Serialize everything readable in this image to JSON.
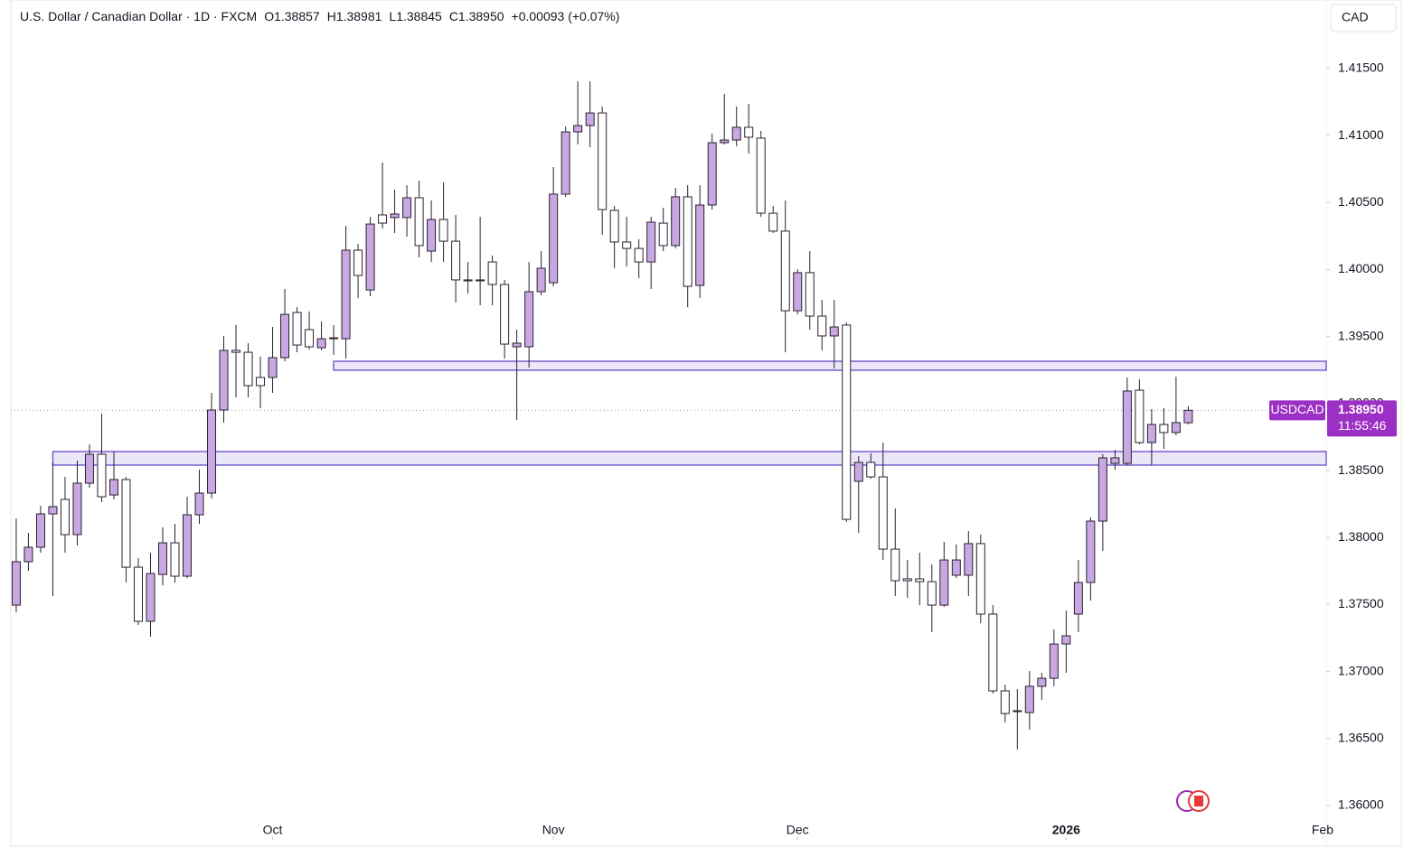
{
  "chart_data": {
    "type": "candlestick",
    "header": {
      "symbol": "U.S. Dollar / Canadian Dollar · 1D · FXCM",
      "ohlc": [
        "O1.38857",
        "H1.38981",
        "L1.38845",
        "C1.38950"
      ],
      "change": "+0.00093 (+0.07%)"
    },
    "currency": "CAD",
    "ticker": "USDCAD",
    "last_price": {
      "value": 1.3895,
      "label": "1.38950"
    },
    "countdown": "11:55:46",
    "up_color": "#c9a7e2",
    "down_color": "#ffffff",
    "border_color": "#2a2230",
    "zone_color": "#7b5fd0",
    "open": [
      1.37496,
      1.3782,
      1.37928,
      1.38177,
      1.38285,
      1.38022,
      1.38406,
      1.38622,
      1.38318,
      1.38433,
      1.37779,
      1.37375,
      1.37725,
      1.37961,
      1.37712,
      1.3817,
      1.38332,
      1.38952,
      1.39397,
      1.39383,
      1.39195,
      1.39195,
      1.39343,
      1.3968,
      1.39552,
      1.39417,
      1.39491,
      1.39484,
      1.40145,
      1.39848,
      1.40408,
      1.40388,
      1.40388,
      1.40536,
      1.40138,
      1.40374,
      1.40212,
      1.39923,
      1.39923,
      1.40057,
      1.39889,
      1.39424,
      1.39424,
      1.39835,
      1.39902,
      1.40563,
      1.41028,
      1.41075,
      1.41169,
      1.40442,
      1.40206,
      1.40158,
      1.40057,
      1.40347,
      1.40179,
      1.40543,
      1.39882,
      1.40482,
      1.40947,
      1.40967,
      1.41062,
      1.40981,
      1.40421,
      1.40287,
      1.39693,
      1.39977,
      1.39653,
      1.39505,
      1.39586,
      1.3842,
      1.38561,
      1.38453,
      1.37914,
      1.37692,
      1.37692,
      1.37671,
      1.37496,
      1.37719,
      1.37719,
      1.37955,
      1.37429,
      1.36856,
      1.36708,
      1.36694,
      1.3689,
      1.3695,
      1.37206,
      1.37429,
      1.37665,
      1.38123,
      1.38554,
      1.38554,
      1.391,
      1.38709,
      1.38844,
      1.38784,
      1.38857
    ],
    "high": [
      1.38143,
      1.38035,
      1.38238,
      1.38561,
      1.38453,
      1.38575,
      1.38696,
      1.38925,
      1.38642,
      1.38453,
      1.37847,
      1.37887,
      1.38076,
      1.38103,
      1.38305,
      1.38507,
      1.3908,
      1.39505,
      1.39586,
      1.39451,
      1.3935,
      1.39572,
      1.39855,
      1.3972,
      1.39687,
      1.39613,
      1.39586,
      1.40327,
      1.40192,
      1.40394,
      1.40799,
      1.40597,
      1.4063,
      1.40664,
      1.40516,
      1.40651,
      1.40408,
      1.40057,
      1.40394,
      1.40105,
      1.39923,
      1.39552,
      1.40057,
      1.40138,
      1.40765,
      1.41068,
      1.41405,
      1.41405,
      1.41217,
      1.40475,
      1.40394,
      1.40226,
      1.40394,
      1.40462,
      1.4061,
      1.4063,
      1.4063,
      1.41014,
      1.41311,
      1.41217,
      1.41237,
      1.41035,
      1.40475,
      1.40516,
      1.40003,
      1.40138,
      1.39774,
      1.39774,
      1.39606,
      1.38608,
      1.38629,
      1.38709,
      1.38217,
      1.37833,
      1.37887,
      1.37799,
      1.37968,
      1.37948,
      1.38049,
      1.38022,
      1.37496,
      1.36903,
      1.36869,
      1.37004,
      1.36991,
      1.37314,
      1.37456,
      1.37833,
      1.3815,
      1.38622,
      1.38655,
      1.39195,
      1.39181,
      1.38959,
      1.38966,
      1.39201,
      1.38981
    ],
    "low": [
      1.37442,
      1.37752,
      1.37887,
      1.37564,
      1.37887,
      1.37941,
      1.38372,
      1.38265,
      1.38285,
      1.37665,
      1.37348,
      1.3726,
      1.37644,
      1.37665,
      1.37698,
      1.38103,
      1.38292,
      1.38858,
      1.39046,
      1.39046,
      1.38966,
      1.3908,
      1.39316,
      1.39383,
      1.39404,
      1.39397,
      1.39363,
      1.39336,
      1.39788,
      1.39801,
      1.40307,
      1.40273,
      1.40246,
      1.40091,
      1.40057,
      1.40057,
      1.39754,
      1.39821,
      1.39734,
      1.39734,
      1.39336,
      1.38878,
      1.39269,
      1.39808,
      1.39875,
      1.40543,
      1.40934,
      1.40913,
      1.4026,
      1.4001,
      1.40024,
      1.39936,
      1.39855,
      1.40138,
      1.40158,
      1.3972,
      1.39788,
      1.40448,
      1.40934,
      1.4092,
      1.40866,
      1.40394,
      1.40273,
      1.39383,
      1.39666,
      1.39552,
      1.39397,
      1.39262,
      1.38116,
      1.38035,
      1.3844,
      1.37833,
      1.37564,
      1.3755,
      1.37496,
      1.37294,
      1.37483,
      1.37698,
      1.37564,
      1.37361,
      1.36836,
      1.3662,
      1.36418,
      1.36566,
      1.36788,
      1.3689,
      1.36991,
      1.37294,
      1.3753,
      1.37901,
      1.38507,
      1.38541,
      1.38696,
      1.38541,
      1.38662,
      1.38763,
      1.38845
    ],
    "close": [
      1.3782,
      1.37928,
      1.38177,
      1.38231,
      1.38022,
      1.38406,
      1.38622,
      1.38305,
      1.38433,
      1.37779,
      1.37375,
      1.37732,
      1.37961,
      1.37712,
      1.3817,
      1.38332,
      1.38952,
      1.39397,
      1.39383,
      1.39134,
      1.39134,
      1.39343,
      1.39666,
      1.39437,
      1.39424,
      1.39484,
      1.39484,
      1.40145,
      1.39956,
      1.4034,
      1.40347,
      1.40415,
      1.40536,
      1.40179,
      1.40374,
      1.40212,
      1.39923,
      1.39916,
      1.39916,
      1.39889,
      1.39444,
      1.39451,
      1.39835,
      1.4001,
      1.40563,
      1.41028,
      1.41075,
      1.41169,
      1.40448,
      1.40206,
      1.40158,
      1.40057,
      1.40354,
      1.40179,
      1.40543,
      1.39875,
      1.40482,
      1.40947,
      1.40967,
      1.41062,
      1.40988,
      1.40421,
      1.40287,
      1.39693,
      1.39977,
      1.39653,
      1.39505,
      1.39572,
      1.38136,
      1.38561,
      1.38453,
      1.37914,
      1.37678,
      1.37678,
      1.37671,
      1.37496,
      1.37833,
      1.37833,
      1.37955,
      1.37429,
      1.36856,
      1.36687,
      1.36701,
      1.3689,
      1.3695,
      1.37206,
      1.37267,
      1.37665,
      1.38123,
      1.38595,
      1.38595,
      1.39094,
      1.38709,
      1.38844,
      1.38784,
      1.38858,
      1.3895
    ],
    "zones": [
      {
        "start": 26,
        "top": 1.39316,
        "bottom": 1.39249
      },
      {
        "start": 3,
        "top": 1.38642,
        "bottom": 1.38541
      }
    ],
    "xlim": [
      -0.44,
      107.3
    ],
    "xticks": [
      {
        "value": 21,
        "label": "Oct"
      },
      {
        "value": 44,
        "label": "Nov"
      },
      {
        "value": 64,
        "label": "Dec"
      },
      {
        "value": 86,
        "label": "2026"
      },
      {
        "value": 107,
        "label": "Feb"
      }
    ],
    "ylim": [
      1.35744,
      1.42012
    ],
    "yticks": [
      {
        "value": 1.36,
        "label": "1.36000"
      },
      {
        "value": 1.365,
        "label": "1.36500"
      },
      {
        "value": 1.37,
        "label": "1.37000"
      },
      {
        "value": 1.375,
        "label": "1.37500"
      },
      {
        "value": 1.38,
        "label": "1.38000"
      },
      {
        "value": 1.385,
        "label": "1.38500"
      },
      {
        "value": 1.39,
        "label": "1.39000"
      },
      {
        "value": 1.395,
        "label": "1.39500"
      },
      {
        "value": 1.4,
        "label": "1.40000"
      },
      {
        "value": 1.405,
        "label": "1.40500"
      },
      {
        "value": 1.41,
        "label": "1.41000"
      },
      {
        "value": 1.415,
        "label": "1.41500"
      }
    ]
  }
}
